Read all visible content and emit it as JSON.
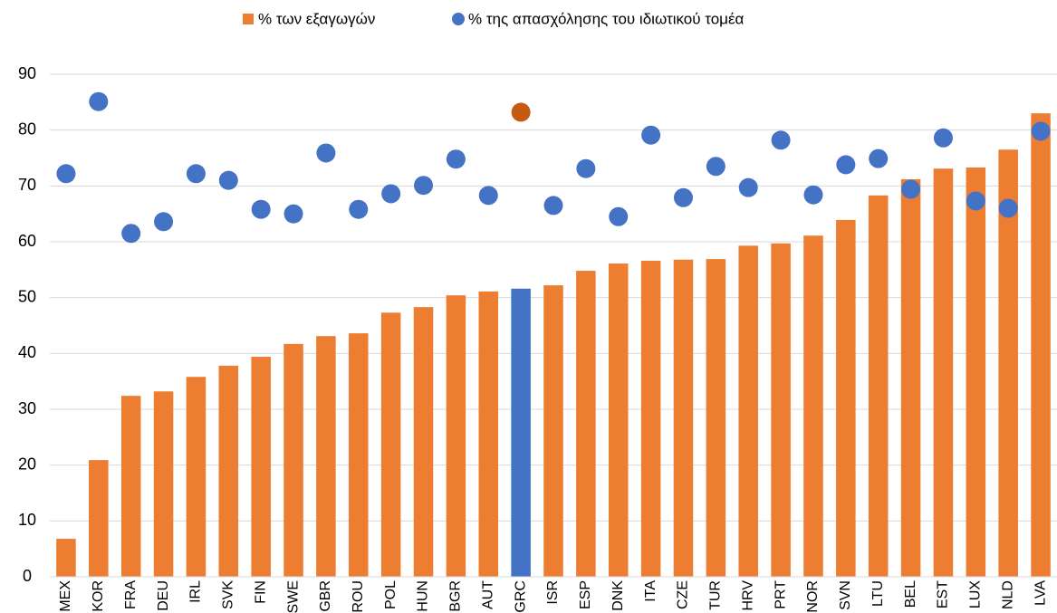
{
  "chart_data": {
    "type": "bar_scatter",
    "categories": [
      "MEX",
      "KOR",
      "FRA",
      "DEU",
      "IRL",
      "SVK",
      "FIN",
      "SWE",
      "GBR",
      "ROU",
      "POL",
      "HUN",
      "BGR",
      "AUT",
      "GRC",
      "ISR",
      "ESP",
      "DNK",
      "ITA",
      "CZE",
      "TUR",
      "HRV",
      "PRT",
      "NOR",
      "SVN",
      "LTU",
      "BEL",
      "EST",
      "LUX",
      "NLD",
      "LVA"
    ],
    "highlight_category": "GRC",
    "series": [
      {
        "name": "% των εξαγωγών",
        "type": "bar",
        "color": "#ed7d31",
        "highlight_color": "#4472c4",
        "values": [
          6.8,
          20.9,
          32.4,
          33.2,
          35.8,
          37.8,
          39.4,
          41.7,
          43.1,
          43.6,
          47.3,
          48.3,
          50.4,
          51.1,
          51.6,
          52.2,
          54.8,
          56.1,
          56.6,
          56.8,
          56.9,
          59.3,
          59.7,
          61.1,
          63.9,
          68.3,
          71.2,
          73.1,
          73.3,
          76.5,
          83.0
        ]
      },
      {
        "name": "% της απασχόλησης του ιδιωτικού τομέα",
        "type": "scatter",
        "color": "#4472c4",
        "highlight_color": "#c55a11",
        "values": [
          72.2,
          85.1,
          61.5,
          63.6,
          72.2,
          71.0,
          65.8,
          65.0,
          75.9,
          65.8,
          68.6,
          70.1,
          74.8,
          68.3,
          83.2,
          66.5,
          73.1,
          64.5,
          79.1,
          67.9,
          73.5,
          69.7,
          78.2,
          68.4,
          73.8,
          74.9,
          69.4,
          78.6,
          67.3,
          66.0,
          79.8
        ]
      }
    ],
    "ylim": [
      0,
      90
    ],
    "yticks": [
      0,
      10,
      20,
      30,
      40,
      50,
      60,
      70,
      80,
      90
    ],
    "grid": true,
    "legend": "top"
  }
}
